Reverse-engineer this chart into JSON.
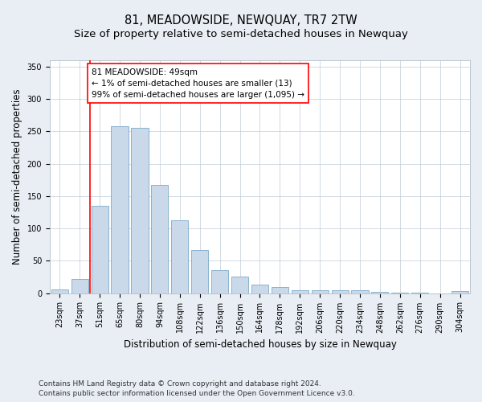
{
  "title": "81, MEADOWSIDE, NEWQUAY, TR7 2TW",
  "subtitle": "Size of property relative to semi-detached houses in Newquay",
  "xlabel": "Distribution of semi-detached houses by size in Newquay",
  "ylabel": "Number of semi-detached properties",
  "categories": [
    "23sqm",
    "37sqm",
    "51sqm",
    "65sqm",
    "80sqm",
    "94sqm",
    "108sqm",
    "122sqm",
    "136sqm",
    "150sqm",
    "164sqm",
    "178sqm",
    "192sqm",
    "206sqm",
    "220sqm",
    "234sqm",
    "248sqm",
    "262sqm",
    "276sqm",
    "290sqm",
    "304sqm"
  ],
  "values": [
    6,
    22,
    135,
    258,
    255,
    167,
    112,
    66,
    36,
    25,
    13,
    9,
    5,
    4,
    5,
    5,
    2,
    1,
    1,
    0,
    3
  ],
  "bar_color": "#c9d9ea",
  "bar_edge_color": "#7aaac8",
  "property_line_color": "red",
  "property_line_x": 1.5,
  "annotation_text": "81 MEADOWSIDE: 49sqm\n← 1% of semi-detached houses are smaller (13)\n99% of semi-detached houses are larger (1,095) →",
  "annotation_box_color": "white",
  "annotation_box_edge_color": "red",
  "ylim": [
    0,
    360
  ],
  "yticks": [
    0,
    50,
    100,
    150,
    200,
    250,
    300,
    350
  ],
  "footer_line1": "Contains HM Land Registry data © Crown copyright and database right 2024.",
  "footer_line2": "Contains public sector information licensed under the Open Government Licence v3.0.",
  "background_color": "#e8eef4",
  "plot_background_color": "#ffffff",
  "grid_color": "#c0ccd8",
  "title_fontsize": 10.5,
  "subtitle_fontsize": 9.5,
  "axis_label_fontsize": 8.5,
  "tick_fontsize": 7,
  "annotation_fontsize": 7.5,
  "footer_fontsize": 6.5
}
